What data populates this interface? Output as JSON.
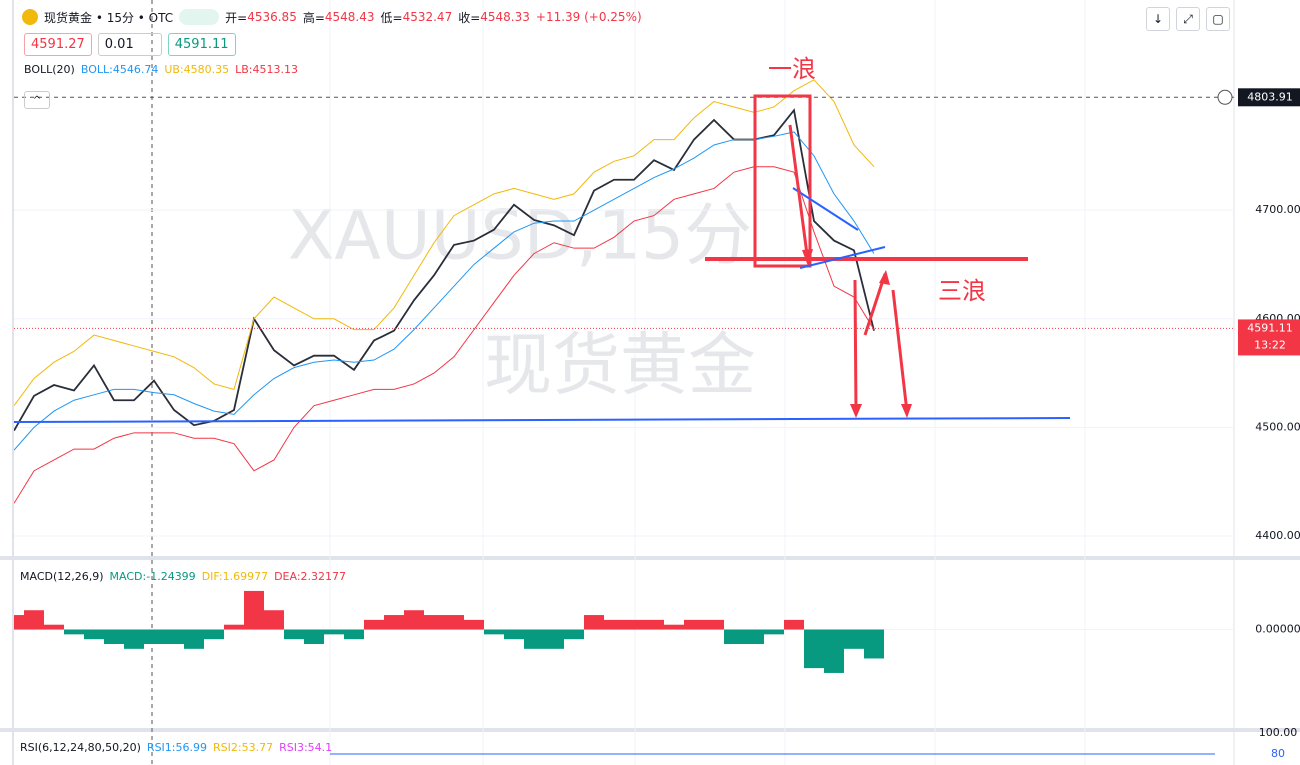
{
  "header": {
    "symbol": "现货黄金 • 15分 • OTC",
    "open_label": "开=",
    "open": 4536.85,
    "high_label": "高=",
    "high": 4548.43,
    "low_label": "低=",
    "low": 4532.47,
    "close_label": "收=",
    "close": 4548.33,
    "change": "+11.39 (+0.25%)",
    "sell_price": 4591.27,
    "quantity": "0.01",
    "buy_price": 4591.11,
    "boll": {
      "name": "BOLL(20)",
      "mid": "BOLL:4546.74",
      "upper": "UB:4580.35",
      "lower": "LB:4513.13"
    },
    "macd": {
      "name": "MACD(12,26,9)",
      "macd": "MACD:-1.24399",
      "dif": "DIF:1.69977",
      "dea": "DEA:2.32177"
    },
    "rsi": {
      "name": "RSI(6,12,24,80,50,20)",
      "rsi1": "RSI1:56.99",
      "rsi2": "RSI2:53.77",
      "rsi3": "RSI3:54.1"
    }
  },
  "chart_data": [
    {
      "type": "line",
      "ylim": [
        4382.5,
        4893.5
      ],
      "yticks": [
        {
          "value": 4400,
          "label": "4400.00"
        },
        {
          "value": 4500,
          "label": "4500.00"
        },
        {
          "value": 4600,
          "label": "4600.00"
        },
        {
          "value": 4700,
          "label": "4700.00"
        }
      ],
      "grid": true,
      "crosshair_price": 4803.91,
      "last_price": 4591.11,
      "countdown": "13:22",
      "annotations": [
        "一浪",
        "三浪"
      ],
      "watermark": [
        "XAUUSD,15分",
        "现货黄金"
      ],
      "series": [
        {
          "color": "#2a2e39",
          "values": [
            4497,
            4529,
            4539,
            4534,
            4557,
            4525,
            4525,
            4543,
            4516,
            4502,
            4506,
            4516,
            4600,
            4571,
            4557,
            4566,
            4566,
            4553,
            4580,
            4589,
            4617,
            4640,
            4668,
            4672,
            4682,
            4705,
            4691,
            4686,
            4677,
            4718,
            4728,
            4728,
            4746,
            4737,
            4765,
            4783,
            4765,
            4765,
            4769,
            4792,
            4690,
            4672,
            4663,
            4589
          ]
        },
        {
          "color": "#f0b90b",
          "values": [
            4520,
            4545,
            4560,
            4570,
            4585,
            4580,
            4575,
            4570,
            4565,
            4555,
            4540,
            4535,
            4600,
            4620,
            4610,
            4600,
            4600,
            4590,
            4590,
            4610,
            4640,
            4670,
            4695,
            4705,
            4715,
            4720,
            4715,
            4710,
            4715,
            4735,
            4745,
            4750,
            4765,
            4765,
            4785,
            4800,
            4795,
            4790,
            4795,
            4810,
            4820,
            4800,
            4760,
            4740
          ]
        },
        {
          "color": "#2196f3",
          "values": [
            4479,
            4500,
            4515,
            4525,
            4530,
            4535,
            4535,
            4532,
            4530,
            4522,
            4515,
            4512,
            4530,
            4545,
            4555,
            4560,
            4562,
            4560,
            4562,
            4572,
            4590,
            4610,
            4630,
            4650,
            4665,
            4680,
            4688,
            4690,
            4690,
            4700,
            4710,
            4720,
            4730,
            4738,
            4748,
            4760,
            4765,
            4765,
            4768,
            4772,
            4750,
            4715,
            4690,
            4660
          ]
        },
        {
          "color": "#f23645",
          "values": [
            4430,
            4460,
            4470,
            4480,
            4480,
            4490,
            4495,
            4495,
            4495,
            4490,
            4490,
            4485,
            4460,
            4470,
            4500,
            4520,
            4525,
            4530,
            4535,
            4535,
            4540,
            4550,
            4565,
            4590,
            4615,
            4640,
            4660,
            4670,
            4665,
            4665,
            4675,
            4690,
            4695,
            4710,
            4715,
            4720,
            4735,
            4740,
            4740,
            4735,
            4680,
            4630,
            4620,
            4590
          ]
        }
      ]
    },
    {
      "type": "bar",
      "ylim": [
        -100,
        70
      ],
      "yticks": [
        {
          "value": 0,
          "label": "0.00000"
        }
      ],
      "up_color": "#f23645",
      "down_color": "#089981",
      "values": [
        15,
        20,
        5,
        -5,
        -10,
        -15,
        -20,
        -15,
        -15,
        -20,
        -10,
        5,
        40,
        20,
        -10,
        -15,
        -5,
        -10,
        10,
        15,
        20,
        15,
        15,
        10,
        -5,
        -10,
        -20,
        -20,
        -10,
        15,
        10,
        10,
        10,
        5,
        10,
        10,
        -15,
        -15,
        -5,
        10,
        -40,
        -45,
        -20,
        -30
      ]
    },
    {
      "type": "line",
      "ylim": [
        0,
        100
      ],
      "yticks": [
        80,
        {
          "value": 100,
          "label": "100.00"
        }
      ],
      "color": "#2962ff"
    }
  ]
}
